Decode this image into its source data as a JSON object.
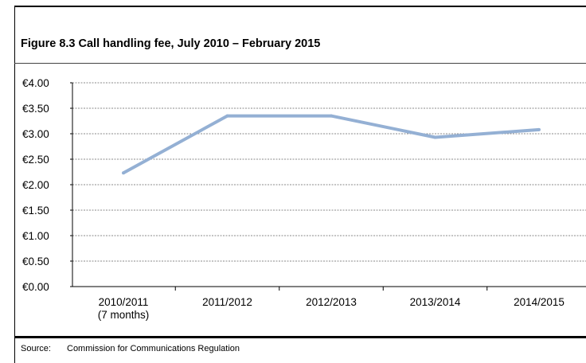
{
  "figure": {
    "title": "Figure 8.3  Call handling fee, July 2010 – February 2015",
    "source_label": "Source:",
    "source_text": "Commission for Communications Regulation"
  },
  "chart_data": {
    "type": "line",
    "title": "Figure 8.3  Call handling fee, July 2010 – February 2015",
    "categories": [
      [
        "2010/2011",
        "(7 months)"
      ],
      [
        "2011/2012"
      ],
      [
        "2012/2013"
      ],
      [
        "2013/2014"
      ],
      [
        "2014/2015"
      ]
    ],
    "series": [
      {
        "values": [
          2.23,
          3.35,
          3.35,
          2.93,
          3.08
        ],
        "color": "#94b0d4"
      }
    ],
    "y_ticks": [
      {
        "value": 0.0,
        "label": "€0.00"
      },
      {
        "value": 0.5,
        "label": "€0.50"
      },
      {
        "value": 1.0,
        "label": "€1.00"
      },
      {
        "value": 1.5,
        "label": "€1.50"
      },
      {
        "value": 2.0,
        "label": "€2.00"
      },
      {
        "value": 2.5,
        "label": "€2.50"
      },
      {
        "value": 3.0,
        "label": "€3.00"
      },
      {
        "value": 3.5,
        "label": "€3.50"
      },
      {
        "value": 4.0,
        "label": "€4.00"
      }
    ],
    "ylim": [
      0,
      4
    ],
    "xlabel": "",
    "ylabel": "",
    "grid": true,
    "legend": "none"
  }
}
